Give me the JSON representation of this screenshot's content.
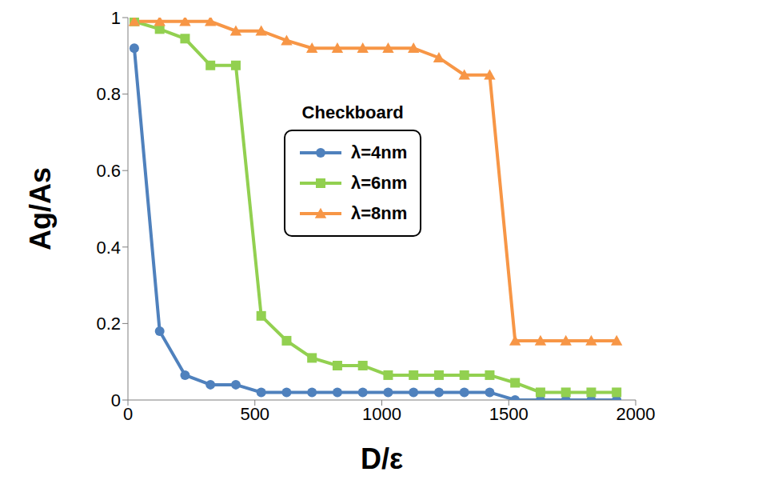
{
  "chart_data": {
    "type": "line",
    "x_label": "D/ε",
    "y_label": "Ag/As",
    "legend_title": "Checkboard",
    "legend": "center",
    "grid": false,
    "x": [
      25,
      125,
      225,
      325,
      425,
      525,
      625,
      725,
      825,
      925,
      1025,
      1125,
      1225,
      1325,
      1425,
      1525,
      1625,
      1725,
      1825,
      1925
    ],
    "xlim": [
      0,
      2000
    ],
    "xticks": [
      0,
      500,
      1000,
      1500,
      2000
    ],
    "ylim": [
      0,
      1
    ],
    "yticks": [
      0,
      0.2,
      0.4,
      0.6,
      0.8,
      1
    ],
    "series": [
      {
        "name": "λ=4nm",
        "color": "#4f81bd",
        "marker": "circle",
        "values": [
          0.92,
          0.18,
          0.065,
          0.04,
          0.04,
          0.02,
          0.02,
          0.02,
          0.02,
          0.02,
          0.02,
          0.02,
          0.02,
          0.02,
          0.02,
          0,
          0,
          0,
          0,
          0
        ]
      },
      {
        "name": "λ=6nm",
        "color": "#92d050",
        "marker": "square",
        "values": [
          0.99,
          0.97,
          0.945,
          0.875,
          0.875,
          0.22,
          0.155,
          0.11,
          0.09,
          0.09,
          0.065,
          0.065,
          0.065,
          0.065,
          0.065,
          0.045,
          0.02,
          0.02,
          0.02,
          0.02
        ]
      },
      {
        "name": "λ=8nm",
        "color": "#f79646",
        "marker": "triangle",
        "values": [
          0.99,
          0.99,
          0.99,
          0.99,
          0.965,
          0.965,
          0.94,
          0.92,
          0.92,
          0.92,
          0.92,
          0.92,
          0.895,
          0.85,
          0.85,
          0.155,
          0.155,
          0.155,
          0.155,
          0.155
        ]
      }
    ]
  }
}
